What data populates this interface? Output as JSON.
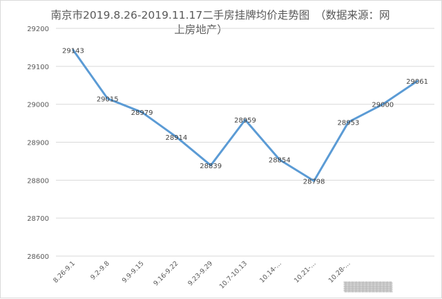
{
  "chart_data": {
    "type": "line",
    "title_lines": [
      "南京市2019.8.26-2019.11.17二手房挂牌均价走势图　（数据来源：网",
      "上房地产）"
    ],
    "categories": [
      "8.26-9.1",
      "9.2-9.8",
      "9.9-9.15",
      "9.16-9.22",
      "9.23-9.29",
      "10.7-10.13",
      "10.14-...",
      "10.21-...",
      "10.28-...",
      "",
      ""
    ],
    "values": [
      29143,
      29015,
      28979,
      28914,
      28839,
      28959,
      28854,
      28798,
      28953,
      29000,
      29061
    ],
    "data_labels": [
      "29143",
      "29015",
      "28979",
      "28914",
      "28839",
      "28959",
      "28854",
      "28798",
      "28953",
      "29000",
      "29061"
    ],
    "y_ticks": [
      "28600",
      "28700",
      "28800",
      "28900",
      "29000",
      "29100",
      "29200"
    ],
    "ylim": [
      28600,
      29200
    ],
    "grid": true,
    "line_color": "#5b9bd5",
    "grid_color": "#d9d9d9"
  }
}
